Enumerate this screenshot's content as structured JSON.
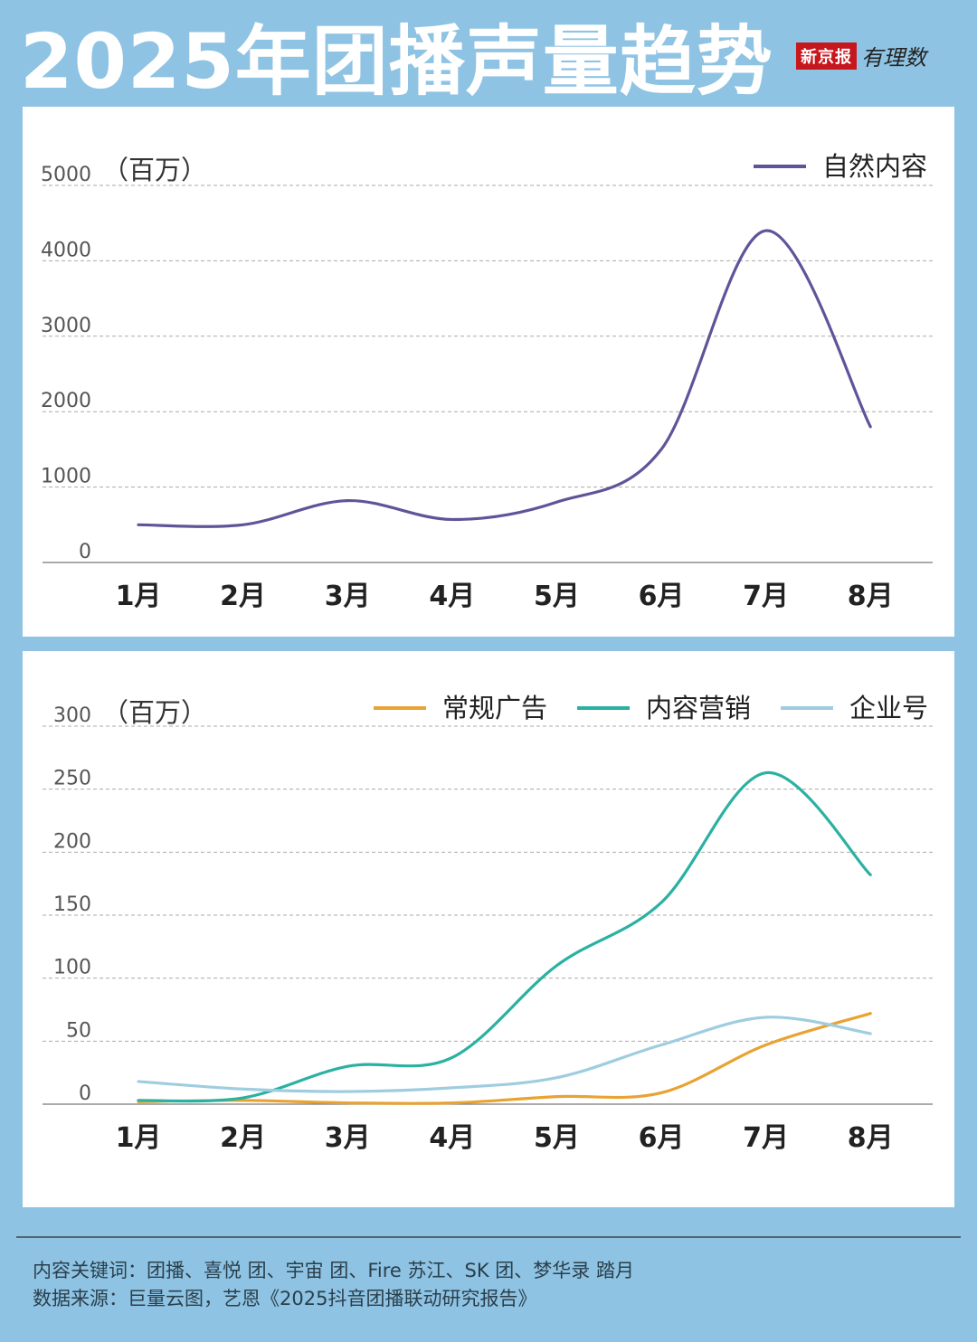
{
  "header": {
    "title": "2025年团播声量趋势",
    "logo_brand": "新京报",
    "logo_script": "有理数"
  },
  "footer": {
    "keywords": "内容关键词：团播、喜悦 团、宇宙 团、Fire 苏江、SK 团、梦华录 踏月",
    "source": "数据来源：巨量云图，艺恩《2025抖音团播联动研究报告》"
  },
  "chart_data": [
    {
      "type": "line",
      "unit_label": "（百万）",
      "categories": [
        "1月",
        "2月",
        "3月",
        "4月",
        "5月",
        "6月",
        "7月",
        "8月"
      ],
      "ylim": [
        0,
        5000
      ],
      "yticks": [
        0,
        1000,
        2000,
        3000,
        4000,
        5000
      ],
      "grid": true,
      "legend_position": "top-right",
      "series": [
        {
          "name": "自然内容",
          "color": "#5e5599",
          "values": [
            500,
            500,
            820,
            570,
            800,
            1500,
            4400,
            1800
          ]
        }
      ]
    },
    {
      "type": "line",
      "unit_label": "（百万）",
      "categories": [
        "1月",
        "2月",
        "3月",
        "4月",
        "5月",
        "6月",
        "7月",
        "8月"
      ],
      "ylim": [
        0,
        300
      ],
      "yticks": [
        0,
        50,
        100,
        150,
        200,
        250,
        300
      ],
      "grid": true,
      "legend_position": "top-right",
      "series": [
        {
          "name": "常规广告",
          "color": "#e8a332",
          "values": [
            2,
            3,
            1,
            1,
            6,
            9,
            47,
            72
          ]
        },
        {
          "name": "内容营销",
          "color": "#2bb1a1",
          "values": [
            3,
            5,
            30,
            37,
            110,
            160,
            263,
            182
          ]
        },
        {
          "name": "企业号",
          "color": "#9fcde0",
          "values": [
            18,
            12,
            10,
            13,
            21,
            47,
            69,
            56
          ]
        }
      ]
    }
  ]
}
